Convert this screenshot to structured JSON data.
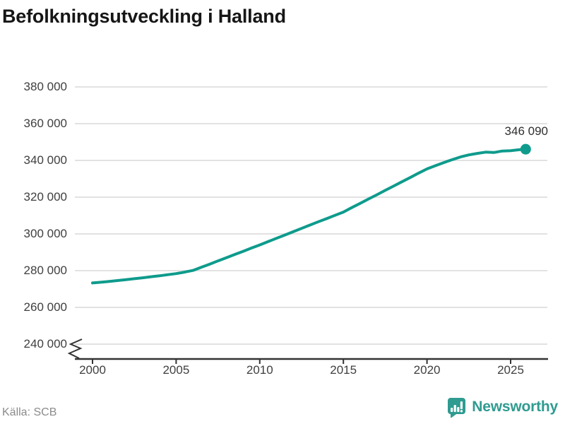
{
  "title": "Befolkningsutveckling i Halland",
  "footer": {
    "source": "Källa: SCB",
    "brand": "Newsworthy"
  },
  "colors": {
    "line": "#0e9b8c",
    "brand": "#2f9b91",
    "grid": "#e2e2e2",
    "axis": "#333333",
    "text": "#3f3f3f",
    "muted": "#8b8b8b",
    "title": "#161616"
  },
  "chart_data": {
    "type": "line",
    "title": "Befolkningsutveckling i Halland",
    "source": "Källa: SCB",
    "xlabel": "",
    "ylabel": "",
    "grid": "horizontal",
    "legend": "none",
    "axis_break": true,
    "ylim": [
      240000,
      380000
    ],
    "xlim": [
      1999,
      2027
    ],
    "yticks": {
      "labels": [
        "380 000",
        "360 000",
        "340 000",
        "320 000",
        "300 000",
        "280 000",
        "260 000",
        "240 000"
      ],
      "values": [
        380000,
        360000,
        340000,
        320000,
        300000,
        280000,
        260000,
        240000
      ]
    },
    "xticks": {
      "labels": [
        "2000",
        "2005",
        "2010",
        "2015",
        "2020",
        "2025"
      ],
      "values": [
        2000,
        2005,
        2010,
        2015,
        2020,
        2025
      ]
    },
    "end_label": "346 090",
    "end_value": 346090,
    "series": [
      {
        "name": "Halland",
        "x": [
          2000.0,
          2000.5,
          2001.0,
          2001.5,
          2002.0,
          2002.5,
          2003.0,
          2003.5,
          2004.0,
          2004.5,
          2005.0,
          2005.5,
          2006.0,
          2006.5,
          2007.0,
          2007.5,
          2008.0,
          2008.5,
          2009.0,
          2009.5,
          2010.0,
          2010.5,
          2011.0,
          2011.5,
          2012.0,
          2012.5,
          2013.0,
          2013.5,
          2014.0,
          2014.5,
          2015.0,
          2015.5,
          2016.0,
          2016.5,
          2017.0,
          2017.5,
          2018.0,
          2018.5,
          2019.0,
          2019.5,
          2020.0,
          2020.5,
          2021.0,
          2021.5,
          2022.0,
          2022.5,
          2023.0,
          2023.5,
          2024.0,
          2024.5,
          2025.0,
          2025.5,
          2025.9
        ],
        "values": [
          273300,
          273700,
          274100,
          274600,
          275100,
          275600,
          276100,
          276700,
          277200,
          277800,
          278400,
          279200,
          280100,
          281800,
          283500,
          285300,
          287000,
          288800,
          290500,
          292300,
          294000,
          295800,
          297600,
          299400,
          301200,
          303000,
          304800,
          306600,
          308300,
          310100,
          311900,
          314300,
          316600,
          319000,
          321300,
          323700,
          326000,
          328400,
          330700,
          333100,
          335400,
          337100,
          338800,
          340400,
          341900,
          343000,
          343800,
          344500,
          344300,
          345100,
          345300,
          345800,
          346090
        ]
      }
    ]
  }
}
